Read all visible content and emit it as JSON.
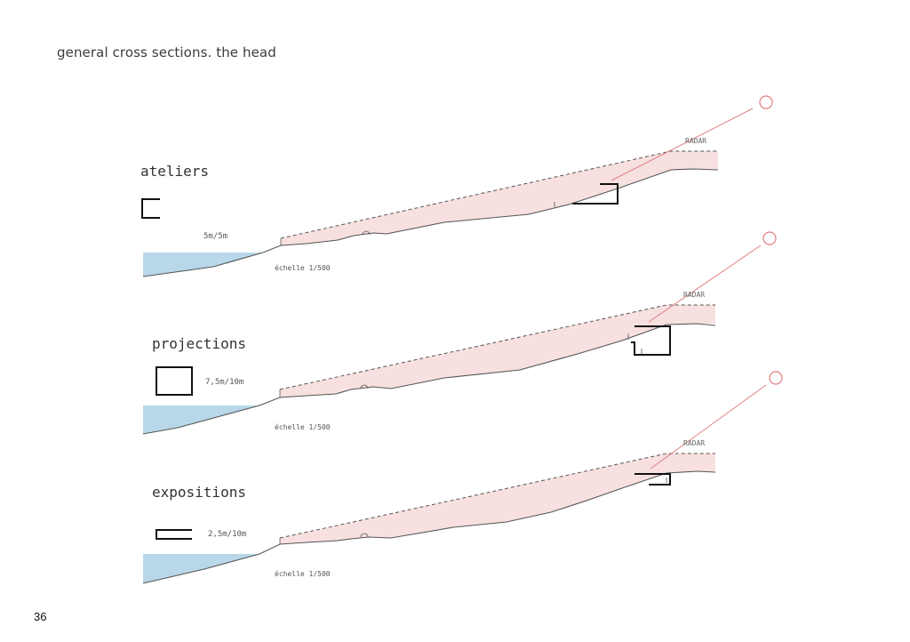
{
  "page": {
    "title": "general cross sections. the head",
    "number": "36"
  },
  "sections": [
    {
      "name": "ateliers",
      "dimension": "5m/5m",
      "scale": "échelle 1/500",
      "radar": "RADAR"
    },
    {
      "name": "projections",
      "dimension": "7,5m/10m",
      "scale": "échelle 1/500",
      "radar": "RADAR"
    },
    {
      "name": "expositions",
      "dimension": "2,5m/10m",
      "scale": "échelle 1/500",
      "radar": "RADAR"
    }
  ],
  "colors": {
    "water": "#b8d8ea",
    "zone": "#f7e0df",
    "radar_beam": "#e07f7f",
    "ground_line": "#555555"
  }
}
